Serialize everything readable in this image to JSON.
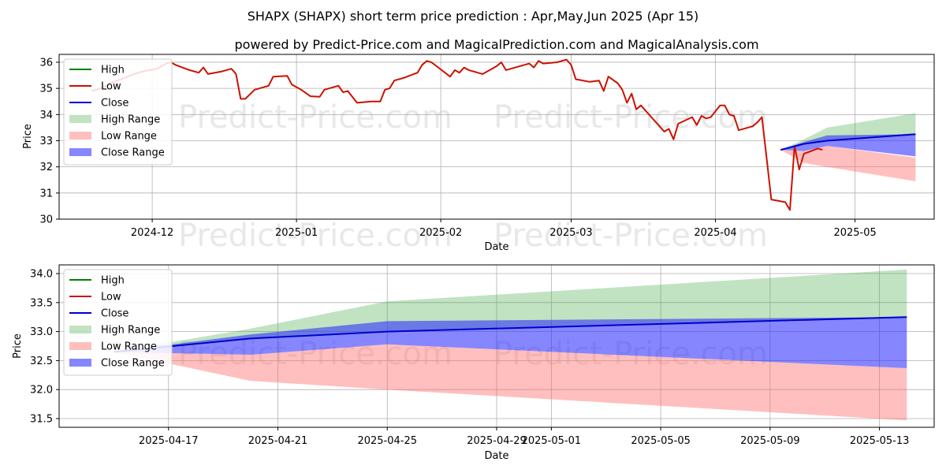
{
  "header": {
    "title": "SHAPX (SHAPX) short term price prediction : Apr,May,Jun 2025 (Apr 15)",
    "subtitle": "powered by Predict-Price.com and MagicalPrediction.com and MagicalAnalysis.com"
  },
  "watermark": "Predict-Price.com",
  "colors": {
    "high": "#008000",
    "low": "#cc1100",
    "close": "#0000cc",
    "high_range": "#4caf50",
    "low_range": "#ff6666",
    "close_range": "#2222ff",
    "grid": "#b0b0b0"
  },
  "chart_data": [
    {
      "type": "line",
      "xlabel": "Date",
      "ylabel": "Price",
      "ylim": [
        30,
        36.3
      ],
      "yticks": [
        "30",
        "31",
        "32",
        "33",
        "34",
        "35",
        "36"
      ],
      "xticks": [
        "2024-12",
        "2025-01",
        "2025-02",
        "2025-03",
        "2025-04",
        "2025-05"
      ],
      "grid": true,
      "legend_position": "top-left",
      "legend": [
        "High",
        "Low",
        "Close",
        "High Range",
        "Low Range",
        "Close Range"
      ],
      "series": [
        {
          "name": "Low",
          "kind": "history",
          "points": [
            [
              "2024-11-18",
              34.9
            ],
            [
              "2024-11-20",
              35.0
            ],
            [
              "2024-11-22",
              35.2
            ],
            [
              "2024-11-25",
              35.4
            ],
            [
              "2024-11-27",
              35.55
            ],
            [
              "2024-11-29",
              35.65
            ],
            [
              "2024-12-02",
              35.75
            ],
            [
              "2024-12-04",
              35.95
            ],
            [
              "2024-12-05",
              36.0
            ],
            [
              "2024-12-06",
              35.9
            ],
            [
              "2024-12-09",
              35.7
            ],
            [
              "2024-12-11",
              35.6
            ],
            [
              "2024-12-12",
              35.8
            ],
            [
              "2024-12-13",
              35.55
            ],
            [
              "2024-12-16",
              35.65
            ],
            [
              "2024-12-18",
              35.75
            ],
            [
              "2024-12-19",
              35.55
            ],
            [
              "2024-12-20",
              34.6
            ],
            [
              "2024-12-21",
              34.6
            ],
            [
              "2024-12-23",
              34.95
            ],
            [
              "2024-12-26",
              35.1
            ],
            [
              "2024-12-27",
              35.45
            ],
            [
              "2024-12-30",
              35.48
            ],
            [
              "2024-12-31",
              35.15
            ],
            [
              "2025-01-02",
              34.95
            ],
            [
              "2025-01-04",
              34.7
            ],
            [
              "2025-01-06",
              34.68
            ],
            [
              "2025-01-07",
              34.95
            ],
            [
              "2025-01-10",
              35.1
            ],
            [
              "2025-01-11",
              34.85
            ],
            [
              "2025-01-12",
              34.9
            ],
            [
              "2025-01-14",
              34.45
            ],
            [
              "2025-01-17",
              34.5
            ],
            [
              "2025-01-19",
              34.5
            ],
            [
              "2025-01-20",
              34.95
            ],
            [
              "2025-01-21",
              35.0
            ],
            [
              "2025-01-22",
              35.3
            ],
            [
              "2025-01-24",
              35.4
            ],
            [
              "2025-01-27",
              35.6
            ],
            [
              "2025-01-28",
              35.9
            ],
            [
              "2025-01-29",
              36.05
            ],
            [
              "2025-01-30",
              36.0
            ],
            [
              "2025-02-03",
              35.45
            ],
            [
              "2025-02-04",
              35.7
            ],
            [
              "2025-02-05",
              35.6
            ],
            [
              "2025-02-06",
              35.8
            ],
            [
              "2025-02-07",
              35.7
            ],
            [
              "2025-02-10",
              35.55
            ],
            [
              "2025-02-12",
              35.75
            ],
            [
              "2025-02-13",
              35.85
            ],
            [
              "2025-02-14",
              36.0
            ],
            [
              "2025-02-15",
              35.7
            ],
            [
              "2025-02-18",
              35.85
            ],
            [
              "2025-02-19",
              35.9
            ],
            [
              "2025-02-20",
              35.95
            ],
            [
              "2025-02-21",
              35.8
            ],
            [
              "2025-02-22",
              36.05
            ],
            [
              "2025-02-23",
              35.95
            ],
            [
              "2025-02-26",
              36.0
            ],
            [
              "2025-02-28",
              36.1
            ],
            [
              "2025-03-01",
              35.9
            ],
            [
              "2025-03-02",
              35.35
            ],
            [
              "2025-03-05",
              35.25
            ],
            [
              "2025-03-07",
              35.3
            ],
            [
              "2025-03-08",
              34.9
            ],
            [
              "2025-03-09",
              35.45
            ],
            [
              "2025-03-11",
              35.2
            ],
            [
              "2025-03-12",
              34.95
            ],
            [
              "2025-03-13",
              34.45
            ],
            [
              "2025-03-14",
              34.8
            ],
            [
              "2025-03-15",
              34.2
            ],
            [
              "2025-03-16",
              34.35
            ],
            [
              "2025-03-18",
              33.95
            ],
            [
              "2025-03-20",
              33.55
            ],
            [
              "2025-03-21",
              33.35
            ],
            [
              "2025-03-22",
              33.45
            ],
            [
              "2025-03-23",
              33.05
            ],
            [
              "2025-03-24",
              33.65
            ],
            [
              "2025-03-27",
              33.9
            ],
            [
              "2025-03-28",
              33.6
            ],
            [
              "2025-03-29",
              33.95
            ],
            [
              "2025-03-30",
              33.85
            ],
            [
              "2025-03-31",
              33.9
            ],
            [
              "2025-04-02",
              34.35
            ],
            [
              "2025-04-03",
              34.35
            ],
            [
              "2025-04-04",
              34.0
            ],
            [
              "2025-04-05",
              33.95
            ],
            [
              "2025-04-06",
              33.4
            ],
            [
              "2025-04-09",
              33.55
            ],
            [
              "2025-04-10",
              33.7
            ],
            [
              "2025-04-11",
              33.9
            ],
            [
              "2025-04-12",
              32.35
            ],
            [
              "2025-04-13",
              30.75
            ],
            [
              "2025-04-16",
              30.65
            ],
            [
              "2025-04-17",
              30.35
            ],
            [
              "2025-04-18",
              32.8
            ],
            [
              "2025-04-19",
              31.9
            ],
            [
              "2025-04-20",
              32.5
            ],
            [
              "2025-04-23",
              32.7
            ],
            [
              "2025-04-24",
              32.65
            ]
          ]
        },
        {
          "name": "Close",
          "kind": "forecast",
          "points": [
            [
              "2025-04-15",
              32.65
            ],
            [
              "2025-04-20",
              32.88
            ],
            [
              "2025-04-25",
              33.0
            ],
            [
              "2025-05-14",
              33.25
            ]
          ]
        }
      ],
      "ranges": {
        "high": [
          [
            "2025-04-15",
            32.65,
            32.65
          ],
          [
            "2025-04-20",
            32.88,
            33.05
          ],
          [
            "2025-04-25",
            33.0,
            33.5
          ],
          [
            "2025-05-14",
            33.25,
            34.05
          ]
        ],
        "low": [
          [
            "2025-04-15",
            32.65,
            32.65
          ],
          [
            "2025-04-20",
            32.15,
            32.6
          ],
          [
            "2025-04-25",
            32.0,
            32.8
          ],
          [
            "2025-05-14",
            31.45,
            32.35
          ]
        ],
        "close": [
          [
            "2025-04-15",
            32.65,
            32.65
          ],
          [
            "2025-04-20",
            32.6,
            32.95
          ],
          [
            "2025-04-25",
            32.8,
            33.2
          ],
          [
            "2025-05-14",
            32.4,
            33.25
          ]
        ]
      }
    },
    {
      "type": "line",
      "xlabel": "Date",
      "ylabel": "Price",
      "ylim": [
        31.35,
        34.15
      ],
      "yticks": [
        "31.5",
        "32.0",
        "32.5",
        "33.0",
        "33.5",
        "34.0"
      ],
      "xticks": [
        "2025-04-17",
        "2025-04-21",
        "2025-04-25",
        "2025-04-29",
        "2025-05-01",
        "2025-05-05",
        "2025-05-09",
        "2025-05-13"
      ],
      "grid": true,
      "legend_position": "top-left",
      "legend": [
        "High",
        "Low",
        "Close",
        "High Range",
        "Low Range",
        "Close Range"
      ],
      "series": [
        {
          "name": "Close",
          "kind": "forecast",
          "points": [
            [
              "2025-04-15",
              32.65
            ],
            [
              "2025-04-20",
              32.88
            ],
            [
              "2025-04-25",
              33.0
            ],
            [
              "2025-05-14",
              33.25
            ]
          ]
        }
      ],
      "ranges": {
        "high": [
          [
            "2025-04-15",
            32.65,
            32.65
          ],
          [
            "2025-04-20",
            32.88,
            33.05
          ],
          [
            "2025-04-25",
            33.0,
            33.52
          ],
          [
            "2025-05-14",
            33.25,
            34.07
          ]
        ],
        "low": [
          [
            "2025-04-15",
            32.65,
            32.65
          ],
          [
            "2025-04-20",
            32.15,
            32.6
          ],
          [
            "2025-04-25",
            32.0,
            32.78
          ],
          [
            "2025-05-14",
            31.47,
            32.37
          ]
        ],
        "close": [
          [
            "2025-04-15",
            32.65,
            32.65
          ],
          [
            "2025-04-20",
            32.6,
            32.95
          ],
          [
            "2025-04-25",
            32.78,
            33.18
          ],
          [
            "2025-05-14",
            32.37,
            33.25
          ]
        ]
      }
    }
  ]
}
